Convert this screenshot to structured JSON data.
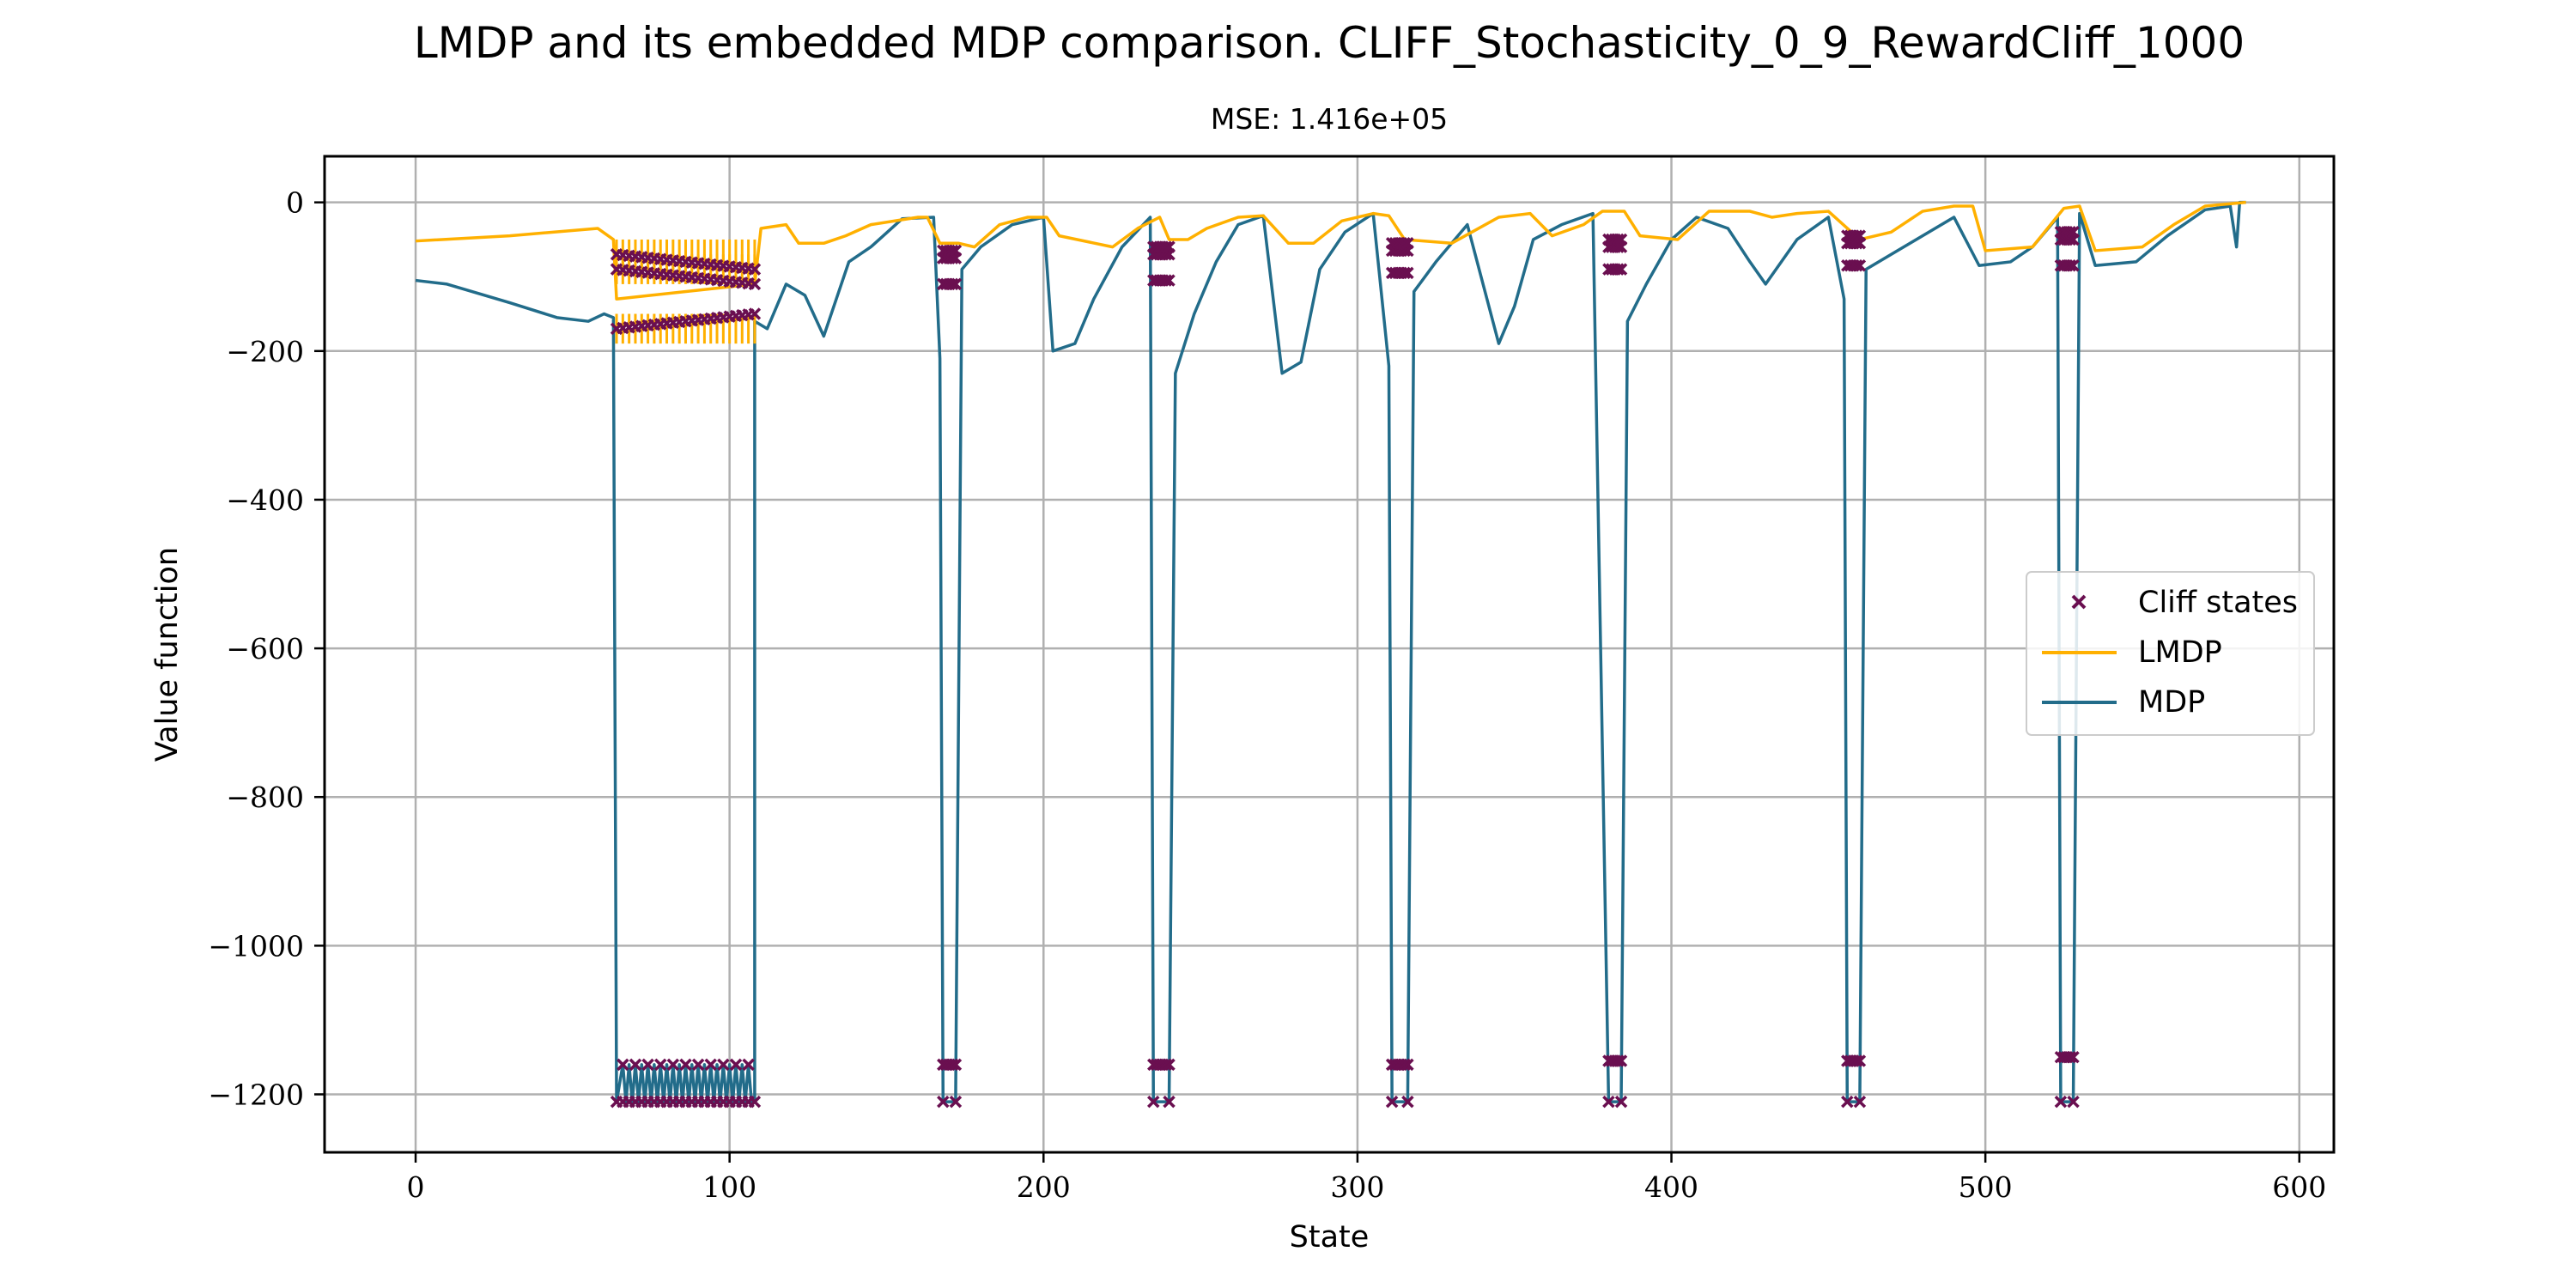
{
  "chart_data": {
    "type": "line",
    "title": "LMDP and its embedded MDP comparison. CLIFF_Stochasticity_0_9_RewardCliff_1000",
    "subtitle": "MSE: 1.416e+05",
    "xlabel": "State",
    "ylabel": "Value function",
    "xlim": [
      -29,
      611
    ],
    "ylim": [
      -1278,
      62
    ],
    "xticks": [
      0,
      100,
      200,
      300,
      400,
      500,
      600
    ],
    "yticks": [
      0,
      -200,
      -400,
      -600,
      -800,
      -1000,
      -1200
    ],
    "xtick_labels": [
      "0",
      "100",
      "200",
      "300",
      "400",
      "500",
      "600"
    ],
    "ytick_labels": [
      "0",
      "−200",
      "−400",
      "−600",
      "−800",
      "−1000",
      "−1200"
    ],
    "grid": true,
    "legend_position": "center-right",
    "colors": {
      "lmdp": "#ffb000",
      "mdp": "#226c8a",
      "cliff": "#6a0f50"
    },
    "series": [
      {
        "key": "cliff",
        "name": "Cliff states",
        "marker": "x"
      },
      {
        "key": "lmdp",
        "name": "LMDP"
      },
      {
        "key": "mdp",
        "name": "MDP"
      }
    ],
    "mdp_bottom_value": -1210,
    "cliff_regions": [
      {
        "x": [
          64,
          108
        ],
        "lmdp": [
          -170,
          -90,
          -70
        ],
        "mdp_low": -1210,
        "mdp_high": -1160
      },
      {
        "x": [
          168,
          172
        ],
        "lmdp": [
          -110,
          -75,
          -65
        ],
        "mdp_low": -1210,
        "mdp_high": -1160
      },
      {
        "x": [
          235,
          240
        ],
        "lmdp": [
          -105,
          -70,
          -60
        ],
        "mdp_low": -1210,
        "mdp_high": -1160
      },
      {
        "x": [
          311,
          316
        ],
        "lmdp": [
          -95,
          -65,
          -55
        ],
        "mdp_low": -1210,
        "mdp_high": -1160
      },
      {
        "x": [
          380,
          384
        ],
        "lmdp": [
          -90,
          -60,
          -50
        ],
        "mdp_low": -1210,
        "mdp_high": -1155
      },
      {
        "x": [
          456,
          460
        ],
        "lmdp": [
          -85,
          -55,
          -45
        ],
        "mdp_low": -1210,
        "mdp_high": -1155
      },
      {
        "x": [
          524,
          528
        ],
        "lmdp": [
          -85,
          -50,
          -40
        ],
        "mdp_low": -1210,
        "mdp_high": -1150
      }
    ],
    "lmdp_line": [
      [
        0,
        -52
      ],
      [
        30,
        -45
      ],
      [
        58,
        -35
      ],
      [
        63,
        -50
      ],
      [
        64,
        -130
      ],
      [
        108,
        -110
      ],
      [
        110,
        -35
      ],
      [
        118,
        -30
      ],
      [
        122,
        -55
      ],
      [
        130,
        -55
      ],
      [
        137,
        -45
      ],
      [
        145,
        -30
      ],
      [
        160,
        -20
      ],
      [
        163,
        -20
      ],
      [
        167,
        -55
      ],
      [
        173,
        -55
      ],
      [
        178,
        -60
      ],
      [
        186,
        -30
      ],
      [
        195,
        -20
      ],
      [
        201,
        -20
      ],
      [
        205,
        -45
      ],
      [
        222,
        -60
      ],
      [
        230,
        -35
      ],
      [
        237,
        -20
      ],
      [
        240,
        -50
      ],
      [
        246,
        -50
      ],
      [
        252,
        -35
      ],
      [
        262,
        -20
      ],
      [
        270,
        -18
      ],
      [
        278,
        -55
      ],
      [
        286,
        -55
      ],
      [
        295,
        -25
      ],
      [
        305,
        -15
      ],
      [
        310,
        -18
      ],
      [
        315,
        -50
      ],
      [
        330,
        -55
      ],
      [
        345,
        -20
      ],
      [
        355,
        -15
      ],
      [
        362,
        -45
      ],
      [
        372,
        -30
      ],
      [
        378,
        -12
      ],
      [
        385,
        -12
      ],
      [
        390,
        -45
      ],
      [
        402,
        -50
      ],
      [
        412,
        -12
      ],
      [
        425,
        -12
      ],
      [
        432,
        -20
      ],
      [
        440,
        -15
      ],
      [
        450,
        -12
      ],
      [
        460,
        -50
      ],
      [
        470,
        -40
      ],
      [
        480,
        -12
      ],
      [
        490,
        -5
      ],
      [
        496,
        -5
      ],
      [
        500,
        -65
      ],
      [
        515,
        -60
      ],
      [
        525,
        -8
      ],
      [
        530,
        -5
      ],
      [
        535,
        -65
      ],
      [
        550,
        -60
      ],
      [
        560,
        -30
      ],
      [
        570,
        -5
      ],
      [
        583,
        0
      ]
    ],
    "mdp_line": [
      [
        0,
        -105
      ],
      [
        10,
        -110
      ],
      [
        30,
        -135
      ],
      [
        45,
        -155
      ],
      [
        55,
        -160
      ],
      [
        60,
        -150
      ],
      [
        63,
        -155
      ],
      [
        64,
        -1210
      ],
      [
        108,
        -1210
      ],
      [
        108,
        -160
      ],
      [
        112,
        -170
      ],
      [
        118,
        -110
      ],
      [
        124,
        -125
      ],
      [
        130,
        -180
      ],
      [
        138,
        -80
      ],
      [
        145,
        -60
      ],
      [
        155,
        -22
      ],
      [
        165,
        -20
      ],
      [
        167,
        -210
      ],
      [
        168,
        -1210
      ],
      [
        172,
        -1210
      ],
      [
        174,
        -90
      ],
      [
        180,
        -60
      ],
      [
        190,
        -30
      ],
      [
        200,
        -20
      ],
      [
        203,
        -200
      ],
      [
        210,
        -190
      ],
      [
        216,
        -130
      ],
      [
        225,
        -60
      ],
      [
        234,
        -20
      ],
      [
        235,
        -1210
      ],
      [
        240,
        -1210
      ],
      [
        242,
        -230
      ],
      [
        248,
        -150
      ],
      [
        255,
        -80
      ],
      [
        262,
        -30
      ],
      [
        270,
        -18
      ],
      [
        276,
        -230
      ],
      [
        282,
        -215
      ],
      [
        288,
        -90
      ],
      [
        296,
        -40
      ],
      [
        305,
        -15
      ],
      [
        310,
        -220
      ],
      [
        311,
        -1210
      ],
      [
        316,
        -1210
      ],
      [
        318,
        -120
      ],
      [
        325,
        -80
      ],
      [
        335,
        -30
      ],
      [
        345,
        -190
      ],
      [
        350,
        -140
      ],
      [
        356,
        -50
      ],
      [
        365,
        -30
      ],
      [
        375,
        -15
      ],
      [
        380,
        -1210
      ],
      [
        384,
        -1210
      ],
      [
        386,
        -160
      ],
      [
        392,
        -110
      ],
      [
        400,
        -50
      ],
      [
        408,
        -20
      ],
      [
        418,
        -35
      ],
      [
        425,
        -80
      ],
      [
        430,
        -110
      ],
      [
        440,
        -50
      ],
      [
        450,
        -20
      ],
      [
        455,
        -130
      ],
      [
        456,
        -1210
      ],
      [
        460,
        -1210
      ],
      [
        462,
        -90
      ],
      [
        470,
        -70
      ],
      [
        480,
        -45
      ],
      [
        490,
        -20
      ],
      [
        498,
        -85
      ],
      [
        508,
        -80
      ],
      [
        515,
        -60
      ],
      [
        523,
        -20
      ],
      [
        524,
        -1210
      ],
      [
        528,
        -1210
      ],
      [
        530,
        -15
      ],
      [
        535,
        -85
      ],
      [
        548,
        -80
      ],
      [
        558,
        -45
      ],
      [
        570,
        -10
      ],
      [
        578,
        -5
      ],
      [
        580,
        -60
      ],
      [
        581,
        0
      ],
      [
        583,
        0
      ]
    ]
  }
}
